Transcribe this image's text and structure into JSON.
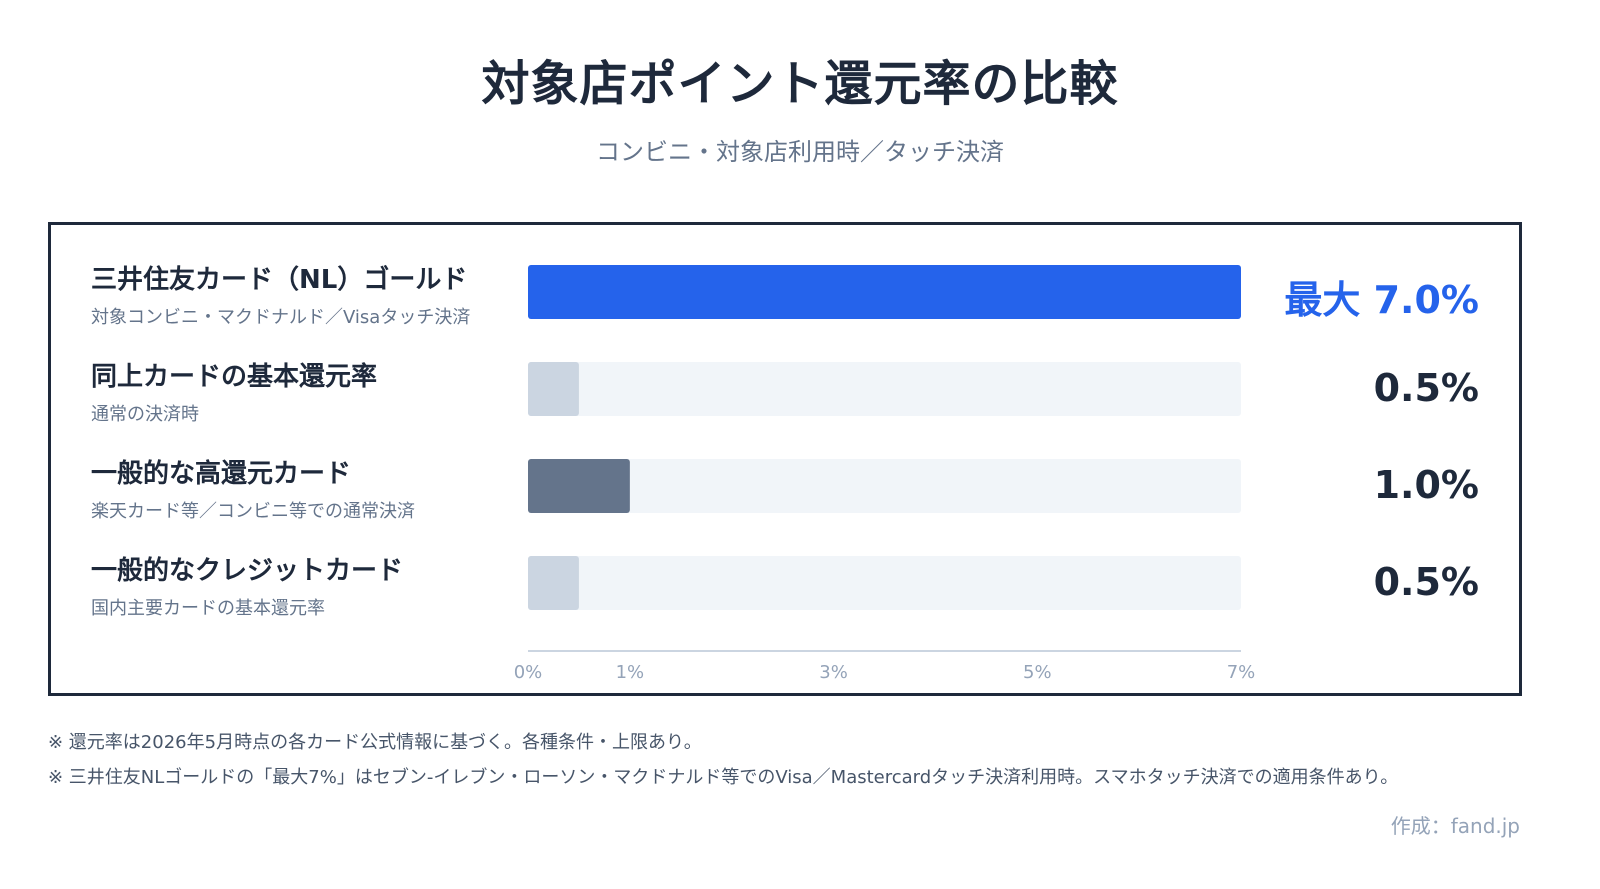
{
  "title": "対象店ポイント還元率の比較",
  "subtitle": "コンビニ・対象店利用時／タッチ決済",
  "chart_data": {
    "type": "bar",
    "orientation": "horizontal",
    "xlim": [
      0,
      7
    ],
    "ticks": [
      "0%",
      "1%",
      "3%",
      "5%",
      "7%"
    ],
    "tick_values": [
      0,
      1,
      3,
      5,
      7
    ],
    "rows": [
      {
        "label": "三井住友カード（NL）ゴールド",
        "sublabel": "対象コンビニ・マクドナルド／Visaタッチ決済",
        "value": 7.0,
        "value_label": "最大 7.0%",
        "color": "#2563eb",
        "value_color": "#2563eb"
      },
      {
        "label": "同上カードの基本還元率",
        "sublabel": "通常の決済時",
        "value": 0.5,
        "value_label": "0.5%",
        "color": "#cbd5e1",
        "value_color": "#1e293b"
      },
      {
        "label": "一般的な高還元カード",
        "sublabel": "楽天カード等／コンビニ等での通常決済",
        "value": 1.0,
        "value_label": "1.0%",
        "color": "#64748b",
        "value_color": "#1e293b"
      },
      {
        "label": "一般的なクレジットカード",
        "sublabel": "国内主要カードの基本還元率",
        "value": 0.5,
        "value_label": "0.5%",
        "color": "#cbd5e1",
        "value_color": "#1e293b"
      }
    ],
    "track_color": "#f1f5f9"
  },
  "notes": [
    "※ 還元率は2026年5月時点の各カード公式情報に基づく。各種条件・上限あり。",
    "※ 三井住友NLゴールドの「最大7%」はセブン-イレブン・ローソン・マクドナルド等でのVisa／Mastercardタッチ決済利用時。スマホタッチ決済での適用条件あり。"
  ],
  "credit": "作成：fand.jp"
}
